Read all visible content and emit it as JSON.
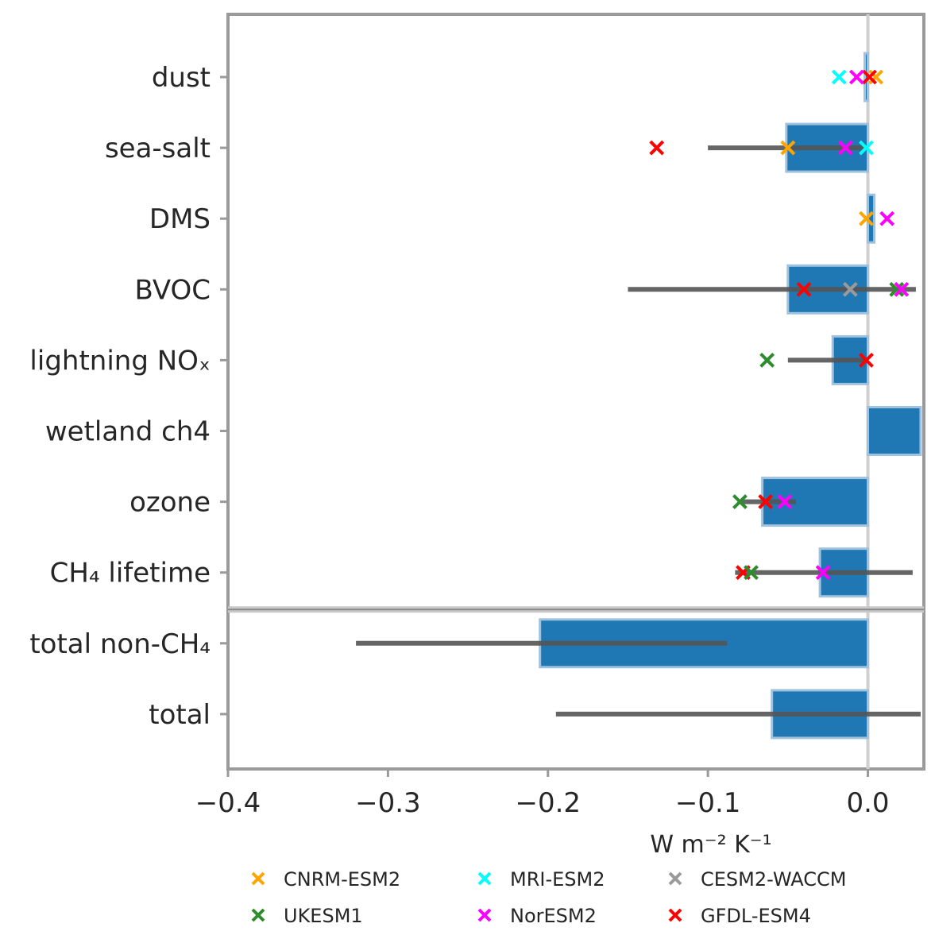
{
  "chart_data": {
    "type": "bar",
    "orientation": "horizontal",
    "xlabel": "W m⁻² K⁻¹",
    "xlim": [
      -0.4,
      0.035
    ],
    "xticks": [
      -0.4,
      -0.3,
      -0.2,
      -0.1,
      0.0
    ],
    "xtick_labels": [
      "−0.4",
      "−0.3",
      "−0.2",
      "−0.1",
      "0.0"
    ],
    "categories": [
      "dust",
      "sea-salt",
      "DMS",
      "BVOC",
      "lightning NOₓ",
      "wetland ch4",
      "ozone",
      "CH₄ lifetime",
      "total non-CH₄",
      "total"
    ],
    "values": [
      -0.002,
      -0.051,
      0.004,
      -0.05,
      -0.022,
      0.033,
      -0.066,
      -0.03,
      -0.205,
      -0.06
    ],
    "error_ranges": [
      null,
      [
        -0.1,
        0.0
      ],
      null,
      [
        -0.15,
        0.03
      ],
      [
        -0.05,
        0.0
      ],
      null,
      [
        -0.08,
        -0.045
      ],
      [
        -0.083,
        0.028
      ],
      [
        -0.32,
        -0.088
      ],
      [
        -0.195,
        0.033
      ]
    ],
    "separator_after": "CH₄ lifetime",
    "models": [
      {
        "name": "CNRM-ESM2",
        "color": "#ffa500"
      },
      {
        "name": "MRI-ESM2",
        "color": "#00ffff"
      },
      {
        "name": "CESM2-WACCM",
        "color": "#9a9a9a"
      },
      {
        "name": "UKESM1",
        "color": "#2e8b2e"
      },
      {
        "name": "NorESM2",
        "color": "#ff00ff"
      },
      {
        "name": "GFDL-ESM4",
        "color": "#ff0000"
      }
    ],
    "points": [
      {
        "cat": "dust",
        "model": "MRI-ESM2",
        "x": -0.018
      },
      {
        "cat": "dust",
        "model": "CNRM-ESM2",
        "x": 0.005
      },
      {
        "cat": "dust",
        "model": "GFDL-ESM4",
        "x": 0.001
      },
      {
        "cat": "dust",
        "model": "NorESM2",
        "x": -0.007
      },
      {
        "cat": "sea-salt",
        "model": "GFDL-ESM4",
        "x": -0.132
      },
      {
        "cat": "sea-salt",
        "model": "CNRM-ESM2",
        "x": -0.05
      },
      {
        "cat": "sea-salt",
        "model": "NorESM2",
        "x": -0.014
      },
      {
        "cat": "sea-salt",
        "model": "MRI-ESM2",
        "x": -0.001
      },
      {
        "cat": "DMS",
        "model": "NorESM2",
        "x": 0.012
      },
      {
        "cat": "DMS",
        "model": "CNRM-ESM2",
        "x": -0.001
      },
      {
        "cat": "BVOC",
        "model": "GFDL-ESM4",
        "x": -0.04
      },
      {
        "cat": "BVOC",
        "model": "CESM2-WACCM",
        "x": -0.011
      },
      {
        "cat": "BVOC",
        "model": "UKESM1",
        "x": 0.018
      },
      {
        "cat": "BVOC",
        "model": "NorESM2",
        "x": 0.021
      },
      {
        "cat": "lightning NOₓ",
        "model": "UKESM1",
        "x": -0.063
      },
      {
        "cat": "lightning NOₓ",
        "model": "GFDL-ESM4",
        "x": -0.001
      },
      {
        "cat": "ozone",
        "model": "UKESM1",
        "x": -0.08
      },
      {
        "cat": "ozone",
        "model": "GFDL-ESM4",
        "x": -0.064
      },
      {
        "cat": "ozone",
        "model": "NorESM2",
        "x": -0.052
      },
      {
        "cat": "CH₄ lifetime",
        "model": "GFDL-ESM4",
        "x": -0.078
      },
      {
        "cat": "CH₄ lifetime",
        "model": "UKESM1",
        "x": -0.073
      },
      {
        "cat": "CH₄ lifetime",
        "model": "NorESM2",
        "x": -0.028
      }
    ],
    "bar_color": "#1f77b4",
    "legend_position": "bottom",
    "grid": false
  }
}
